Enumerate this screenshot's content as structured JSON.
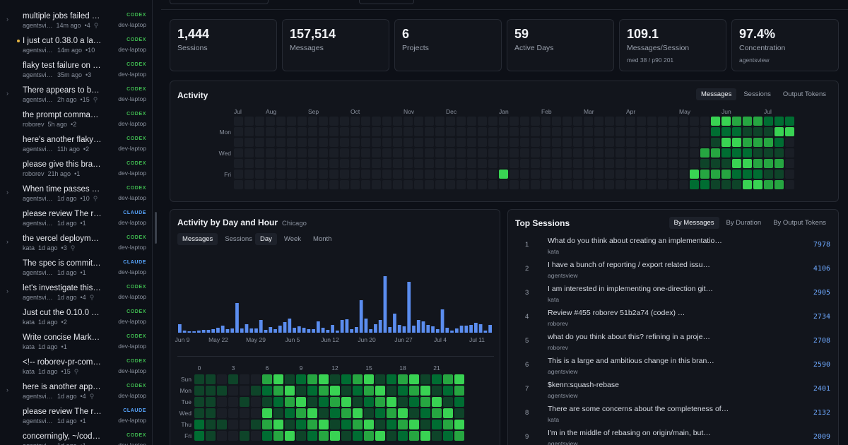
{
  "sidebar": {
    "items": [
      {
        "title": "multiple jobs failed th…",
        "project": "agentsvi…",
        "age": "14m ago",
        "count": "•4",
        "agent": "CODEX",
        "machine": "dev-laptop",
        "expandable": true,
        "dot": false,
        "user": true
      },
      {
        "title": "I just cut 0.38.0 a lar…",
        "project": "agentsview",
        "age": "14m ago",
        "count": "•10",
        "agent": "CODEX",
        "machine": "dev-laptop",
        "expandable": false,
        "dot": true,
        "user": false
      },
      {
        "title": "flaky test failure on …",
        "project": "agentsview",
        "age": "35m ago",
        "count": "•3",
        "agent": "CODEX",
        "machine": "dev-laptop",
        "expandable": false,
        "dot": false,
        "user": false
      },
      {
        "title": "There appears to be …",
        "project": "agentsview",
        "age": "2h ago",
        "count": "•15",
        "agent": "CODEX",
        "machine": "dev-laptop",
        "expandable": true,
        "dot": false,
        "user": true
      },
      {
        "title": "the prompt command…",
        "project": "roborev",
        "age": "5h ago",
        "count": "•2",
        "agent": "CODEX",
        "machine": "dev-laptop",
        "expandable": false,
        "dot": false,
        "user": false
      },
      {
        "title": "here's another flaky …",
        "project": "agentsview",
        "age": "11h ago",
        "count": "•2",
        "agent": "CODEX",
        "machine": "dev-laptop",
        "expandable": false,
        "dot": false,
        "user": false
      },
      {
        "title": "please give this bran…",
        "project": "roborev",
        "age": "21h ago",
        "count": "•1",
        "agent": "CODEX",
        "machine": "dev-laptop",
        "expandable": false,
        "dot": false,
        "user": false
      },
      {
        "title": "When time passes an…",
        "project": "agentsview",
        "age": "1d ago",
        "count": "•10",
        "agent": "CODEX",
        "machine": "dev-laptop",
        "expandable": true,
        "dot": false,
        "user": true
      },
      {
        "title": "please review The re…",
        "project": "agentsview",
        "age": "1d ago",
        "count": "•1",
        "agent": "CLAUDE",
        "machine": "dev-laptop",
        "expandable": false,
        "dot": false,
        "user": false
      },
      {
        "title": "the vercel deployme…",
        "project": "kata",
        "age": "1d ago",
        "count": "•3",
        "agent": "CODEX",
        "machine": "dev-laptop",
        "expandable": true,
        "dot": false,
        "user": true
      },
      {
        "title": "The spec is committe…",
        "project": "agentsview",
        "age": "1d ago",
        "count": "•1",
        "agent": "CLAUDE",
        "machine": "dev-laptop",
        "expandable": false,
        "dot": false,
        "user": false
      },
      {
        "title": "let's investigate this c…",
        "project": "agentsview",
        "age": "1d ago",
        "count": "•4",
        "agent": "CODEX",
        "machine": "dev-laptop",
        "expandable": true,
        "dot": false,
        "user": true
      },
      {
        "title": "Just cut the 0.10.0 re…",
        "project": "kata",
        "age": "1d ago",
        "count": "•2",
        "agent": "CODEX",
        "machine": "dev-laptop",
        "expandable": false,
        "dot": false,
        "user": false
      },
      {
        "title": "Write concise Markd…",
        "project": "kata",
        "age": "1d ago",
        "count": "•1",
        "agent": "CODEX",
        "machine": "dev-laptop",
        "expandable": false,
        "dot": false,
        "user": false
      },
      {
        "title": "<!-- roborev-pr-com…",
        "project": "kata",
        "age": "1d ago",
        "count": "•15",
        "agent": "CODEX",
        "machine": "dev-laptop",
        "expandable": false,
        "dot": false,
        "user": true
      },
      {
        "title": "here is another appar…",
        "project": "agentsview",
        "age": "1d ago",
        "count": "•4",
        "agent": "CODEX",
        "machine": "dev-laptop",
        "expandable": true,
        "dot": false,
        "user": true
      },
      {
        "title": "please review The re…",
        "project": "agentsview",
        "age": "1d ago",
        "count": "•1",
        "agent": "CLAUDE",
        "machine": "dev-laptop",
        "expandable": false,
        "dot": false,
        "user": false
      },
      {
        "title": "concerningly, ~/code…",
        "project": "agentsview",
        "age": "1d ago",
        "count": "•1",
        "agent": "CODEX",
        "machine": "dev-laptop",
        "expandable": false,
        "dot": false,
        "user": false
      }
    ]
  },
  "stats": [
    {
      "value": "1,444",
      "label": "Sessions",
      "sub": ""
    },
    {
      "value": "157,514",
      "label": "Messages",
      "sub": ""
    },
    {
      "value": "6",
      "label": "Projects",
      "sub": ""
    },
    {
      "value": "59",
      "label": "Active Days",
      "sub": ""
    },
    {
      "value": "109.1",
      "label": "Messages/Session",
      "sub": "med 38 / p90 201"
    },
    {
      "value": "97.4%",
      "label": "Concentration",
      "sub": "agentsview"
    }
  ],
  "activity": {
    "title": "Activity",
    "tabs": [
      "Messages",
      "Sessions",
      "Output Tokens"
    ],
    "active_tab": "Messages",
    "months": [
      "Jul",
      "Aug",
      "Sep",
      "Oct",
      "Nov",
      "Dec",
      "Jan",
      "Feb",
      "Mar",
      "Apr",
      "May",
      "Jun",
      "Jul"
    ],
    "day_labels": [
      "Mon",
      "Wed",
      "Fri"
    ],
    "colors": {
      "empty": "#1a1e26",
      "l1": "#0e4429",
      "l2": "#006d32",
      "l3": "#26a641",
      "l4": "#39d353"
    }
  },
  "by_day_hour": {
    "title": "Activity by Day and Hour",
    "timezone": "Chicago",
    "metric_tabs": [
      "Messages",
      "Sessions"
    ],
    "metric_active": "Messages",
    "period_tabs": [
      "Day",
      "Week",
      "Month"
    ],
    "period_active": "Day",
    "bar_color": "#5b8def",
    "x_labels": [
      "Jun 9",
      "May 22",
      "May 29",
      "Jun 5",
      "Jun 12",
      "Jun 20",
      "Jun 27",
      "Jul 4",
      "Jul 11"
    ],
    "daily_values": [
      0.12,
      0.03,
      0.02,
      0.02,
      0.03,
      0.04,
      0.04,
      0.05,
      0.07,
      0.1,
      0.05,
      0.06,
      0.42,
      0.06,
      0.12,
      0.06,
      0.06,
      0.18,
      0.04,
      0.08,
      0.05,
      0.1,
      0.15,
      0.2,
      0.07,
      0.09,
      0.07,
      0.05,
      0.05,
      0.16,
      0.07,
      0.04,
      0.11,
      0.03,
      0.18,
      0.19,
      0.05,
      0.08,
      0.46,
      0.2,
      0.05,
      0.12,
      0.18,
      0.8,
      0.08,
      0.27,
      0.11,
      0.09,
      0.72,
      0.1,
      0.18,
      0.16,
      0.11,
      0.09,
      0.05,
      0.33,
      0.07,
      0.03,
      0.06,
      0.1,
      0.1,
      0.11,
      0.14,
      0.12,
      0.03,
      0.11
    ],
    "hours": [
      "0",
      "3",
      "6",
      "9",
      "12",
      "15",
      "18",
      "21"
    ],
    "days": [
      "Sun",
      "Mon",
      "Tue",
      "Wed",
      "Thu",
      "Fri"
    ]
  },
  "top_sessions": {
    "title": "Top Sessions",
    "tabs": [
      "By Messages",
      "By Duration",
      "By Output Tokens"
    ],
    "active_tab": "By Messages",
    "rows": [
      {
        "rank": "1",
        "title": "What do you think about creating an implementatio…",
        "project": "kata",
        "value": "7978"
      },
      {
        "rank": "2",
        "title": "I have a bunch of reporting / export related issu…",
        "project": "agentsview",
        "value": "4106"
      },
      {
        "rank": "3",
        "title": "I am interested in implementing one-direction git…",
        "project": "kata",
        "value": "2905"
      },
      {
        "rank": "4",
        "title": "Review #455 roborev 51b2a74 (codex) …",
        "project": "roborev",
        "value": "2734"
      },
      {
        "rank": "5",
        "title": "what do you think about this? refining in a proje…",
        "project": "roborev",
        "value": "2708"
      },
      {
        "rank": "6",
        "title": "This is a large and ambitious change in this bran…",
        "project": "agentsview",
        "value": "2590"
      },
      {
        "rank": "7",
        "title": "$kenn:squash-rebase",
        "project": "agentsview",
        "value": "2401"
      },
      {
        "rank": "8",
        "title": "There are some concerns about the completeness of…",
        "project": "kata",
        "value": "2132"
      },
      {
        "rank": "9",
        "title": "I'm in the middle of rebasing on origin/main, but…",
        "project": "agentsview",
        "value": "2009"
      }
    ]
  }
}
